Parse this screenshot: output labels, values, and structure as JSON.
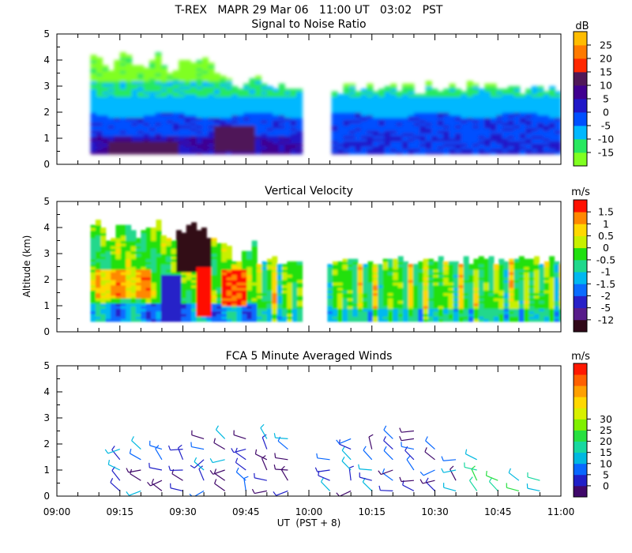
{
  "chart_data": {
    "type": "heatmap",
    "title": "T-REX   MAPR 29 Mar 06   11:00 UT   03:02   PST",
    "xlabel": "UT  (PST + 8)",
    "x_tick_labels": [
      "09:00",
      "09:15",
      "09:30",
      "09:45",
      "10:00",
      "10:15",
      "10:30",
      "10:45",
      "11:00"
    ],
    "x_range_minutes": [
      0,
      120
    ],
    "data_gap_minutes": [
      58.5,
      65
    ],
    "panels": [
      {
        "title": "Signal to Noise Ratio",
        "ylabel": "",
        "ylim": [
          0,
          5
        ],
        "y_tick_labels": [
          "0",
          "1",
          "2",
          "3",
          "4",
          "5"
        ],
        "colorbar_unit": "dB",
        "colorbar_labels": [
          "-15",
          "-10",
          "-5",
          "0",
          "5",
          "10",
          "15",
          "20",
          "25"
        ],
        "colorbar_colors": [
          "#80ff20",
          "#28e860",
          "#00b8ff",
          "#0050ff",
          "#2018c8",
          "#400090",
          "#501858",
          "#ff2800",
          "#ff7a00",
          "#ffbc00"
        ],
        "approx_layers": [
          {
            "range_km": [
              0.4,
              1.0
            ],
            "value_db": 10
          },
          {
            "range_km": [
              1.0,
              1.8
            ],
            "value_db": 2
          },
          {
            "range_km": [
              1.8,
              2.5
            ],
            "value_db": -3
          },
          {
            "range_km": [
              2.5,
              3.2
            ],
            "value_db": -8
          },
          {
            "range_km": [
              3.2,
              4.1
            ],
            "value_db": -12
          }
        ]
      },
      {
        "title": "Vertical Velocity",
        "ylabel": "Altitude (km)",
        "ylim": [
          0,
          5
        ],
        "y_tick_labels": [
          "0",
          "1",
          "2",
          "3",
          "4",
          "5"
        ],
        "colorbar_unit": "m/s",
        "colorbar_labels": [
          "-12",
          "-5",
          "-2",
          "-1.5",
          "-1",
          "-0.5",
          "0",
          "0.5",
          "1",
          "1.5"
        ],
        "colorbar_colors": [
          "#300818",
          "#581c8a",
          "#2820c8",
          "#0a6cff",
          "#00b8f0",
          "#20d88c",
          "#20e010",
          "#c8f000",
          "#ffd800",
          "#ff8800",
          "#ff1000"
        ],
        "features": [
          {
            "time_min": 31,
            "range_km": [
              2.2,
              3.8
            ],
            "value_ms": -12
          },
          {
            "time_min": 33,
            "range_km": [
              0.4,
              2.6
            ],
            "value_ms": 1.5
          },
          {
            "time_min": 41,
            "range_km": [
              0.8,
              2.4
            ],
            "value_ms": 1.5
          }
        ]
      },
      {
        "title": "FCA 5 Minute Averaged Winds",
        "ylabel": "",
        "ylim": [
          0,
          5
        ],
        "y_tick_labels": [
          "0",
          "1",
          "2",
          "3",
          "4",
          "5"
        ],
        "colorbar_unit": "m/s",
        "colorbar_labels": [
          "0",
          "5",
          "10",
          "15",
          "20",
          "25",
          "30"
        ],
        "colorbar_colors": [
          "#40086a",
          "#2020c8",
          "#0868ff",
          "#00b8e0",
          "#18d8a0",
          "#28e040",
          "#80f000",
          "#d8f000",
          "#ffd800",
          "#ffa000",
          "#ff6000",
          "#ff1800"
        ],
        "wind_profile_times_min": [
          15,
          20,
          25,
          30,
          35,
          40,
          45,
          50,
          55,
          65,
          70,
          75,
          80,
          85,
          90,
          95,
          100,
          105,
          110,
          115
        ],
        "wind_barb_heights_km": [
          0.2,
          0.6,
          1.0,
          1.4,
          1.8,
          2.2,
          2.5
        ],
        "wind_profile_top_km": [
          1.8,
          2.1,
          1.9,
          1.8,
          2.2,
          2.4,
          2.2,
          2.4,
          2.3,
          1.7,
          2.3,
          2.1,
          2.4,
          2.6,
          1.9,
          1.6,
          1.5,
          0.9,
          0.9,
          0.6
        ]
      }
    ]
  }
}
